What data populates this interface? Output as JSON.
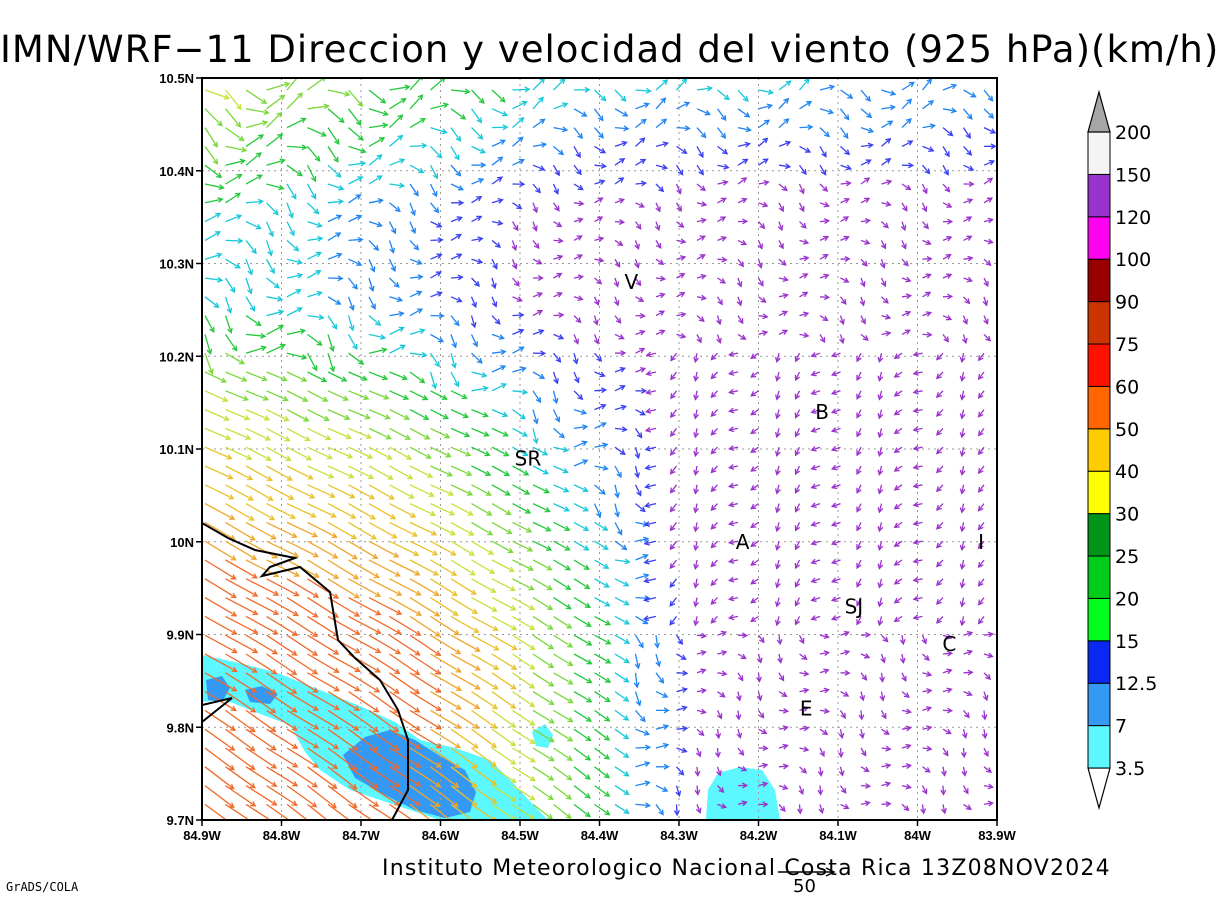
{
  "title": "IMN/WRF−11 Direccion y velocidad del viento (925 hPa)(km/h)",
  "footer": "Instituto Meteorologico Nacional Costa Rica 13Z08NOV2024",
  "credit": "GrADS/COLA",
  "reference_vector": {
    "value": "50"
  },
  "map": {
    "lon_range": [
      -84.9,
      -83.9
    ],
    "lat_range": [
      9.7,
      10.5
    ],
    "x_ticks": [
      "84.9W",
      "84.8W",
      "84.7W",
      "84.6W",
      "84.5W",
      "84.4W",
      "84.3W",
      "84.2W",
      "84.1W",
      "84W",
      "83.9W"
    ],
    "y_ticks": [
      "9.7N",
      "9.8N",
      "9.9N",
      "10N",
      "10.1N",
      "10.2N",
      "10.3N",
      "10.4N",
      "10.5N"
    ],
    "grid": "dotted",
    "places": [
      {
        "label": "V",
        "lon": -84.36,
        "lat": 10.28
      },
      {
        "label": "B",
        "lon": -84.12,
        "lat": 10.14
      },
      {
        "label": "SR",
        "lon": -84.49,
        "lat": 10.09
      },
      {
        "label": "A",
        "lon": -84.22,
        "lat": 10.0
      },
      {
        "label": "I",
        "lon": -83.92,
        "lat": 10.0
      },
      {
        "label": "SJ",
        "lon": -84.08,
        "lat": 9.93
      },
      {
        "label": "C",
        "lon": -83.96,
        "lat": 9.89
      },
      {
        "label": "E",
        "lon": -84.14,
        "lat": 9.82
      }
    ]
  },
  "colorbar": {
    "labels": [
      "3.5",
      "7",
      "12.5",
      "15",
      "20",
      "25",
      "30",
      "40",
      "50",
      "60",
      "75",
      "90",
      "100",
      "120",
      "150",
      "200"
    ],
    "colors": [
      "#ffffff",
      "#5cf7ff",
      "#3498f5",
      "#0a28f2",
      "#00ff1e",
      "#00cc1a",
      "#009418",
      "#ffff00",
      "#ffcc00",
      "#ff6600",
      "#ff1100",
      "#cc3300",
      "#990000",
      "#ff00f0",
      "#9933cc",
      "#f4f4f4",
      "#a6a6a6"
    ]
  }
}
